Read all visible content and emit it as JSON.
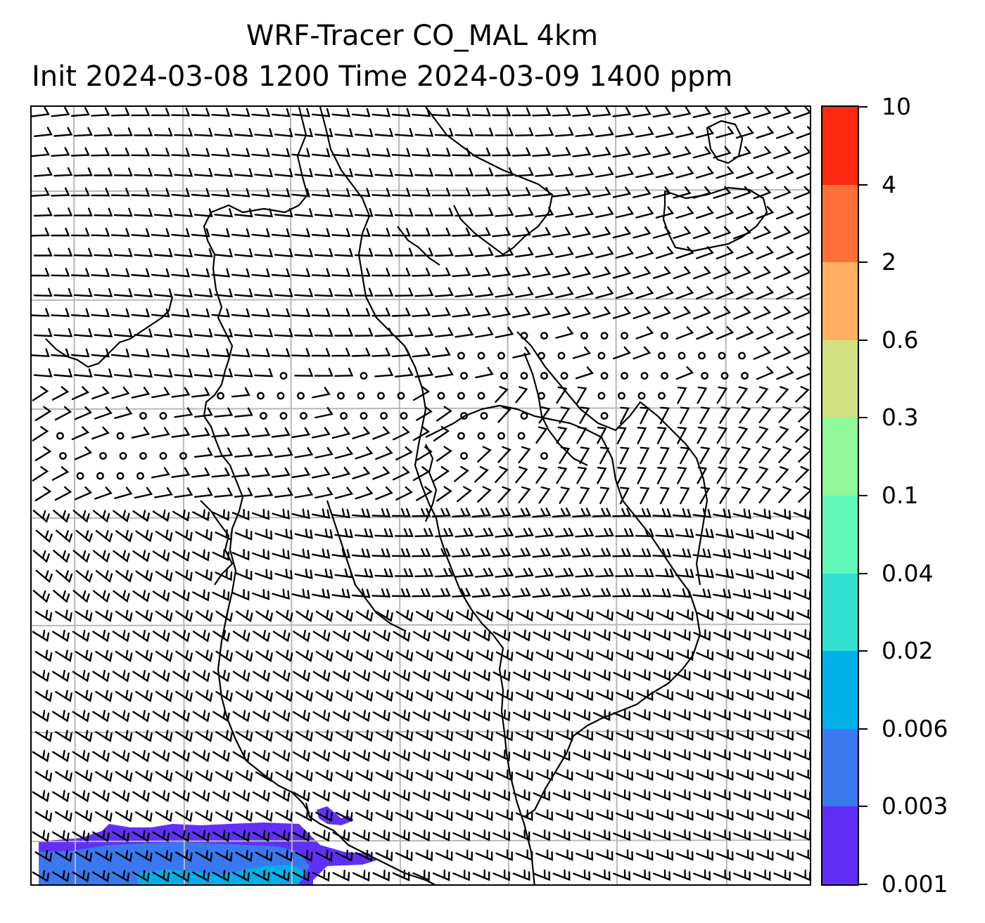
{
  "title": {
    "line1": "WRF-Tracer CO_MAL 4km",
    "line2": "Init 2024-03-08 1200 Time 2024-03-09 1400 ppm"
  },
  "colorbar": {
    "levels": [
      "0.001",
      "0.003",
      "0.006",
      "0.02",
      "0.04",
      "0.1",
      "0.3",
      "0.6",
      "2",
      "4",
      "10"
    ],
    "colors": [
      "#6030f8",
      "#3a78f0",
      "#00b0e8",
      "#30e0d0",
      "#60f8b8",
      "#90f898",
      "#d0e080",
      "#ffb060",
      "#ff7038",
      "#ff2810"
    ]
  },
  "map": {
    "layers": [
      "gridlines",
      "coastlines",
      "wind-barbs",
      "tracer-fill"
    ],
    "fill_colors": {
      "low": "#6030f8",
      "mid": "#3a78f0",
      "high": "#00b0e8"
    }
  }
}
